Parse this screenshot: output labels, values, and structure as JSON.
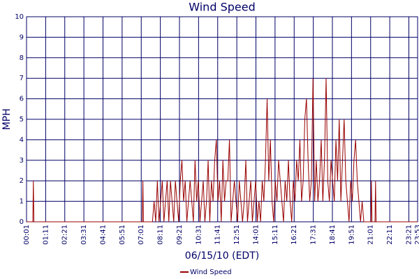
{
  "chart_data": {
    "type": "line",
    "title": "Wind Speed",
    "xlabel": "06/15/10 (EDT)",
    "ylabel": "MPH",
    "xlim": [
      1,
      1433
    ],
    "ylim": [
      0,
      10
    ],
    "grid": true,
    "legend": "bottom",
    "yticks": [
      0,
      1,
      2,
      3,
      4,
      5,
      6,
      7,
      8,
      9,
      10
    ],
    "xticks": [
      {
        "value": 1,
        "label": "00:01"
      },
      {
        "value": 71,
        "label": "01:11"
      },
      {
        "value": 141,
        "label": "02:21"
      },
      {
        "value": 211,
        "label": "03:31"
      },
      {
        "value": 281,
        "label": "04:41"
      },
      {
        "value": 351,
        "label": "05:51"
      },
      {
        "value": 421,
        "label": "07:01"
      },
      {
        "value": 491,
        "label": "08:11"
      },
      {
        "value": 561,
        "label": "09:21"
      },
      {
        "value": 631,
        "label": "10:31"
      },
      {
        "value": 701,
        "label": "11:41"
      },
      {
        "value": 771,
        "label": "12:51"
      },
      {
        "value": 841,
        "label": "14:01"
      },
      {
        "value": 911,
        "label": "15:11"
      },
      {
        "value": 981,
        "label": "16:21"
      },
      {
        "value": 1051,
        "label": "17:31"
      },
      {
        "value": 1121,
        "label": "18:41"
      },
      {
        "value": 1191,
        "label": "19:51"
      },
      {
        "value": 1261,
        "label": "21:01"
      },
      {
        "value": 1331,
        "label": "22:11"
      },
      {
        "value": 1401,
        "label": "23:21"
      },
      {
        "value": 1433,
        "label": "23:53"
      }
    ],
    "x": [
      1,
      24,
      26,
      28,
      420,
      425,
      427,
      429,
      462,
      468,
      474,
      480,
      486,
      492,
      498,
      504,
      510,
      516,
      522,
      528,
      534,
      540,
      546,
      552,
      558,
      564,
      570,
      576,
      582,
      588,
      594,
      600,
      606,
      612,
      618,
      624,
      630,
      636,
      642,
      648,
      654,
      660,
      666,
      672,
      678,
      684,
      690,
      696,
      702,
      708,
      714,
      720,
      726,
      732,
      738,
      744,
      750,
      756,
      762,
      768,
      774,
      780,
      786,
      792,
      798,
      804,
      810,
      816,
      822,
      828,
      834,
      840,
      846,
      852,
      858,
      864,
      870,
      876,
      882,
      888,
      894,
      900,
      906,
      912,
      918,
      924,
      930,
      936,
      942,
      948,
      954,
      960,
      966,
      972,
      978,
      984,
      990,
      996,
      1002,
      1008,
      1014,
      1020,
      1026,
      1032,
      1038,
      1044,
      1050,
      1056,
      1062,
      1068,
      1074,
      1080,
      1086,
      1092,
      1098,
      1104,
      1110,
      1116,
      1122,
      1128,
      1134,
      1140,
      1146,
      1152,
      1158,
      1164,
      1170,
      1176,
      1182,
      1188,
      1194,
      1200,
      1206,
      1212,
      1218,
      1224,
      1230,
      1236,
      1242,
      1262,
      1264,
      1266,
      1277,
      1279,
      1281,
      1433
    ],
    "series": [
      {
        "name": "Wind Speed",
        "color": "#990000",
        "values": [
          0,
          0,
          2,
          0,
          0,
          0,
          2,
          0,
          0,
          1,
          0,
          2,
          0,
          1,
          2,
          0,
          1,
          2,
          0,
          2,
          1,
          0,
          2,
          1,
          0,
          2,
          3,
          1,
          2,
          0,
          1,
          2,
          1,
          0,
          3,
          1,
          2,
          0,
          1,
          2,
          0,
          1,
          3,
          0,
          2,
          1,
          3,
          4,
          1,
          2,
          0,
          3,
          1,
          2,
          2,
          4,
          0,
          1,
          2,
          1,
          0,
          2,
          1,
          0,
          1,
          3,
          0,
          1,
          2,
          0,
          1,
          2,
          0,
          1,
          0,
          2,
          1,
          3,
          6,
          2,
          4,
          1,
          0,
          2,
          1,
          3,
          2,
          1,
          0,
          2,
          1,
          3,
          1,
          0,
          2,
          1,
          3,
          2,
          4,
          1,
          2,
          5,
          6,
          3,
          1,
          2,
          7,
          1,
          3,
          1,
          2,
          4,
          1,
          3,
          7,
          2,
          1,
          3,
          2,
          1,
          4,
          2,
          5,
          1,
          3,
          5,
          2,
          1,
          0,
          2,
          1,
          3,
          4,
          2,
          1,
          0,
          1,
          0,
          0,
          0,
          2,
          0,
          0,
          2,
          0,
          0
        ]
      }
    ]
  }
}
